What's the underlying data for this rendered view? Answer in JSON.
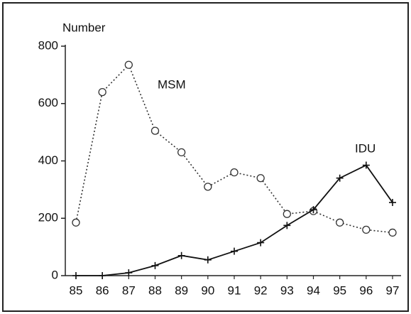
{
  "chart_data": {
    "type": "line",
    "y_axis_label": "Number",
    "categories": [
      "85",
      "86",
      "87",
      "88",
      "89",
      "90",
      "91",
      "92",
      "93",
      "94",
      "95",
      "96",
      "97"
    ],
    "series": [
      {
        "name": "MSM",
        "color": "#333333",
        "marker": "circle",
        "line_style": "dotted",
        "values": [
          185,
          640,
          735,
          505,
          430,
          310,
          360,
          340,
          215,
          225,
          185,
          160,
          150
        ]
      },
      {
        "name": "IDU",
        "color": "#111111",
        "marker": "plus",
        "line_style": "solid",
        "values": [
          0,
          0,
          10,
          35,
          70,
          55,
          85,
          115,
          175,
          230,
          340,
          385,
          255
        ]
      }
    ],
    "ylim": [
      0,
      800
    ],
    "yticks": [
      0,
      200,
      400,
      600,
      800
    ]
  }
}
